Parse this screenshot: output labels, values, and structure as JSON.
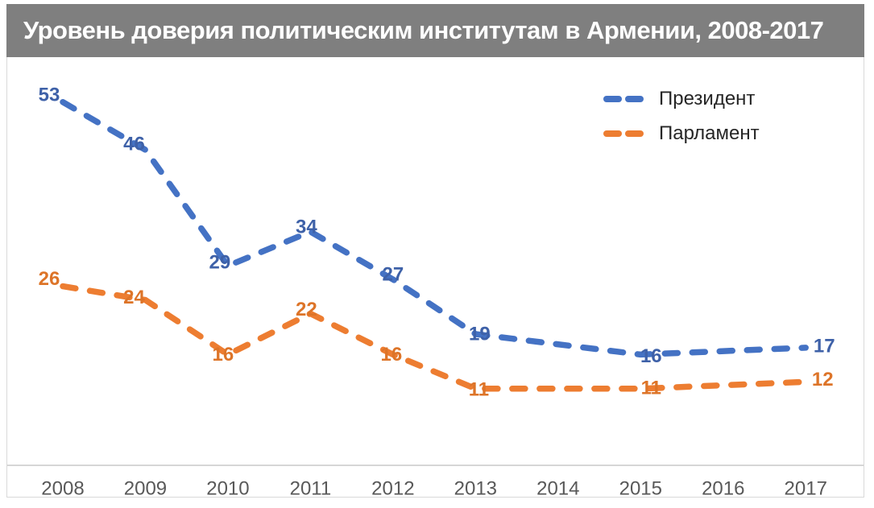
{
  "title": "Уровень доверия политическим институтам в Армении, 2008-2017",
  "legend": {
    "items": [
      {
        "label": "Президент",
        "color": "#4472C4"
      },
      {
        "label": "Парламент",
        "color": "#ED7D31"
      }
    ]
  },
  "colors": {
    "title_bg": "#7F7F7F",
    "title_text": "#FFFFFF",
    "axis_text": "#595959",
    "axis_line": "#C8C8C8",
    "frame_border": "#D9D9D9",
    "legend_text": "#262626",
    "president_line": "#4472C4",
    "president_label": "#3E61A8",
    "parliament_line": "#ED7D31",
    "parliament_label": "#DD7428"
  },
  "chart_data": {
    "type": "line",
    "title": "Уровень доверия политическим институтам в Армении, 2008-2017",
    "categories": [
      "2008",
      "2009",
      "2010",
      "2011",
      "2012",
      "2013",
      "2014",
      "2015",
      "2016",
      "2017"
    ],
    "series": [
      {
        "name": "Президент",
        "color": "#4472C4",
        "label_color": "#3E61A8",
        "line_style": "dashed",
        "values": [
          53,
          46,
          29,
          34,
          27,
          19,
          null,
          16,
          null,
          17
        ]
      },
      {
        "name": "Парламент",
        "color": "#ED7D31",
        "label_color": "#DD7428",
        "line_style": "dashed",
        "values": [
          26,
          24,
          16,
          22,
          16,
          11,
          null,
          11,
          null,
          12
        ]
      }
    ],
    "ylim": [
      0,
      60
    ],
    "grid": false,
    "data_labels": true,
    "legend_position": "top-right",
    "xlabel": "",
    "ylabel": ""
  }
}
